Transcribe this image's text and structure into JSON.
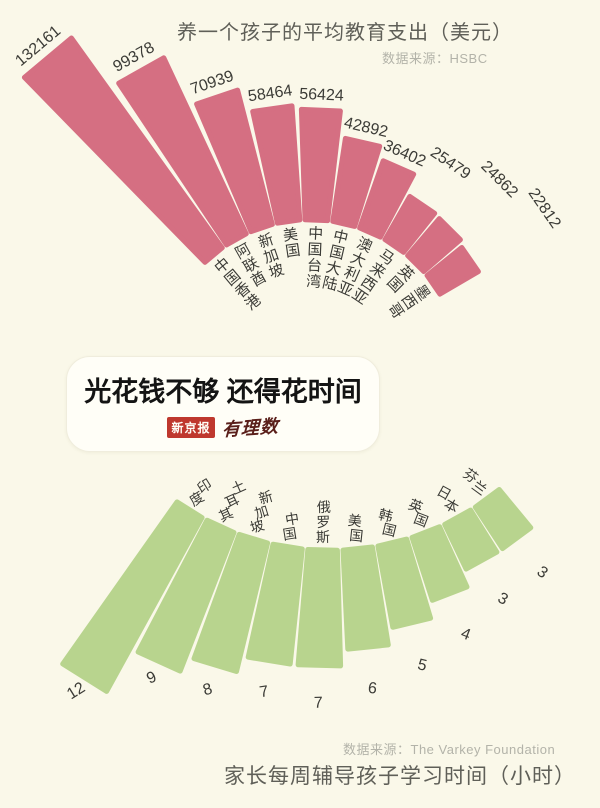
{
  "page": {
    "background": "#faf8e9"
  },
  "headline": {
    "text": "光花钱不够 还得花时间",
    "logo_left": "新京报",
    "logo_right": "有理数"
  },
  "chart_data": [
    {
      "type": "bar",
      "variant": "radial-fan",
      "orientation": "fan-up",
      "title": "养一个孩子的平均教育支出（美元）",
      "source": "数据来源：HSBC",
      "categories": [
        "中国香港",
        "阿联酋",
        "新加坡",
        "美国",
        "中国台湾",
        "中国大陆",
        "澳大利亚",
        "马来西亚",
        "英国",
        "墨西哥"
      ],
      "values": [
        132161,
        99378,
        70939,
        58464,
        56424,
        42892,
        36402,
        25479,
        24862,
        22812
      ],
      "bar_color": "#d56f82",
      "label_color": "#3b3b36",
      "legend": "none",
      "grid": false
    },
    {
      "type": "bar",
      "variant": "radial-fan",
      "orientation": "fan-down",
      "title": "家长每周辅导孩子学习时间（小时）",
      "source": "数据来源：The Varkey Foundation",
      "categories": [
        "印度",
        "土耳其",
        "新加坡",
        "中国",
        "俄罗斯",
        "美国",
        "韩国",
        "英国",
        "日本",
        "芬兰"
      ],
      "values": [
        12,
        9,
        8,
        7,
        7,
        6,
        5,
        4,
        3,
        3
      ],
      "bar_color": "#b8d48e",
      "label_color": "#3b3b36",
      "legend": "none",
      "grid": false
    }
  ]
}
